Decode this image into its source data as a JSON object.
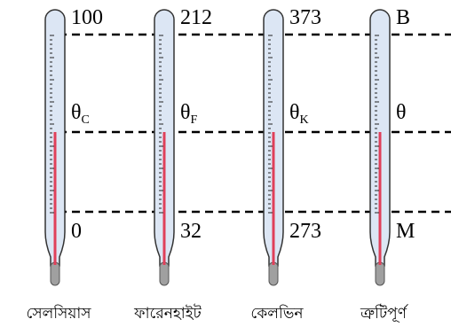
{
  "thermometers": [
    {
      "top": "100",
      "mid": "θ",
      "mid_sub": "C",
      "bottom": "0",
      "name": "সেলসিয়াস"
    },
    {
      "top": "212",
      "mid": "θ",
      "mid_sub": "F",
      "bottom": "32",
      "name": "ফারেনহাইট"
    },
    {
      "top": "373",
      "mid": "θ",
      "mid_sub": "K",
      "bottom": "273",
      "name": "কেলভিন"
    },
    {
      "top": "B",
      "mid": "θ",
      "bottom": "M",
      "name": "ত্রুটিপূর্ণ"
    }
  ]
}
